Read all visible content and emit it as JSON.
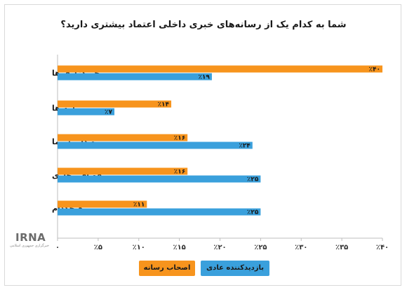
{
  "chart_data": {
    "type": "bar",
    "orientation": "horizontal",
    "title": "شما به کدام یک از رسانه‌های خبری داخلی اعتماد بیشتری دارید؟",
    "categories": [
      "خبرگزاری ها",
      "روزنامه ها",
      "صدا و سیما",
      "فضای مجازی",
      "هیچکدام"
    ],
    "series": [
      {
        "name": "اصحاب رسانه",
        "color": "#f7941d",
        "values": [
          40,
          14,
          16,
          16,
          11
        ],
        "labels": [
          "٪۴۰",
          "٪۱۴",
          "٪۱۶",
          "٪۱۶",
          "٪۱۱"
        ]
      },
      {
        "name": "بازدیدکننده عادی",
        "color": "#3aa0dc",
        "values": [
          19,
          7,
          24,
          25,
          25
        ],
        "labels": [
          "٪۱۹",
          "٪۷",
          "٪۲۴",
          "٪۲۵",
          "٪۲۵"
        ]
      }
    ],
    "xlim": [
      0,
      40
    ],
    "xticks": [
      0,
      5,
      10,
      15,
      20,
      25,
      30,
      35,
      40
    ],
    "xtick_labels": [
      "۰",
      "٪۵",
      "٪۱۰",
      "٪۱۵",
      "٪۲۰",
      "٪۲۵",
      "٪۳۰",
      "٪۳۵",
      "٪۴۰"
    ],
    "grid": false,
    "legend_position": "bottom"
  },
  "logo": {
    "text": "IRNA",
    "subtitle": "خبرگزاری جمهوری اسلامی"
  }
}
